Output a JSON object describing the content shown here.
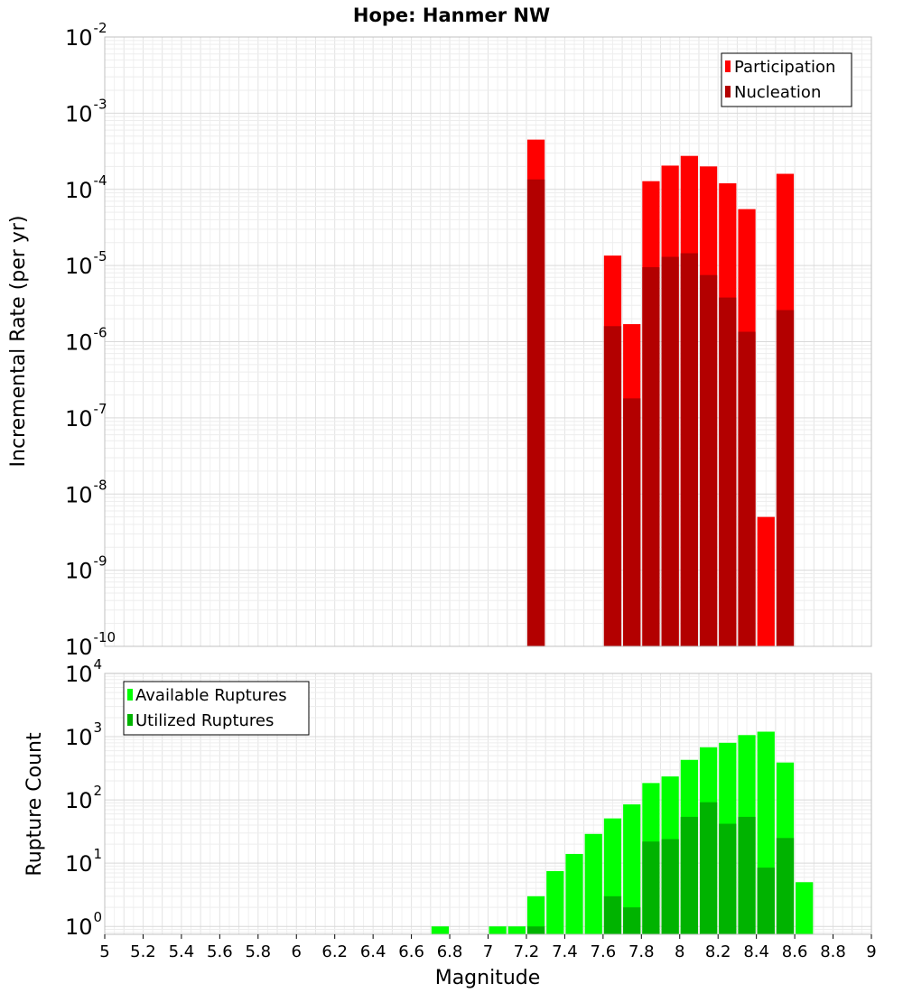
{
  "chart_data": [
    {
      "type": "bar",
      "title": "Hope: Hanmer NW",
      "xlabel": "Magnitude",
      "ylabel": "Incremental Rate (per yr)",
      "yscale": "log",
      "xlim": [
        5,
        9
      ],
      "ylim": [
        1e-10,
        0.01
      ],
      "legend_position": "top-right",
      "grid": true,
      "stacked_overlay": true,
      "bin_width": 0.1,
      "series": [
        {
          "name": "Participation",
          "color": "#ff0000",
          "x": [
            7.25,
            7.65,
            7.75,
            7.85,
            7.95,
            8.05,
            8.15,
            8.25,
            8.35,
            8.45,
            8.55
          ],
          "values": [
            0.00045,
            1.35e-05,
            1.7e-06,
            0.000128,
            0.000205,
            0.000275,
            0.0002,
            0.00012,
            5.5e-05,
            5e-09,
            0.00016
          ]
        },
        {
          "name": "Nucleation",
          "color": "#b30000",
          "x": [
            7.25,
            7.65,
            7.75,
            7.85,
            7.95,
            8.05,
            8.15,
            8.25,
            8.35,
            8.55
          ],
          "values": [
            0.000135,
            1.6e-06,
            1.8e-07,
            9.5e-06,
            1.3e-05,
            1.45e-05,
            7.5e-06,
            3.8e-06,
            1.35e-06,
            2.6e-06
          ]
        }
      ]
    },
    {
      "type": "bar",
      "xlabel": "Magnitude",
      "ylabel": "Rupture Count",
      "yscale": "log",
      "xlim": [
        5,
        9
      ],
      "ylim": [
        0.75,
        10000.0
      ],
      "legend_position": "top-left",
      "grid": true,
      "stacked_overlay": true,
      "bin_width": 0.1,
      "series": [
        {
          "name": "Available Ruptures",
          "color": "#00ff00",
          "x": [
            6.75,
            7.05,
            7.15,
            7.25,
            7.35,
            7.45,
            7.55,
            7.65,
            7.75,
            7.85,
            7.95,
            8.05,
            8.15,
            8.25,
            8.35,
            8.45,
            8.55,
            8.65
          ],
          "values": [
            1,
            1,
            1,
            3,
            7.5,
            14,
            29,
            51,
            85,
            185,
            235,
            430,
            680,
            800,
            1060,
            1200,
            390,
            5
          ]
        },
        {
          "name": "Utilized Ruptures",
          "color": "#00b300",
          "x": [
            7.25,
            7.65,
            7.75,
            7.85,
            7.95,
            8.05,
            8.15,
            8.25,
            8.35,
            8.45,
            8.55
          ],
          "values": [
            1,
            3,
            2,
            22,
            24,
            54,
            92,
            42,
            54,
            8.5,
            25
          ]
        }
      ]
    }
  ],
  "xticks": [
    "5",
    "5.2",
    "5.4",
    "5.6",
    "5.8",
    "6",
    "6.2",
    "6.4",
    "6.6",
    "6.8",
    "7",
    "7.2",
    "7.4",
    "7.6",
    "7.8",
    "8",
    "8.2",
    "8.4",
    "8.6",
    "8.8",
    "9"
  ],
  "top_yticks": [
    {
      "base": "10",
      "exp": "-10",
      "value": 1e-10
    },
    {
      "base": "10",
      "exp": "-9",
      "value": 1e-09
    },
    {
      "base": "10",
      "exp": "-8",
      "value": 1e-08
    },
    {
      "base": "10",
      "exp": "-7",
      "value": 1e-07
    },
    {
      "base": "10",
      "exp": "-6",
      "value": 1e-06
    },
    {
      "base": "10",
      "exp": "-5",
      "value": 1e-05
    },
    {
      "base": "10",
      "exp": "-4",
      "value": 0.0001
    },
    {
      "base": "10",
      "exp": "-3",
      "value": 0.001
    },
    {
      "base": "10",
      "exp": "-2",
      "value": 0.01
    }
  ],
  "bottom_yticks": [
    {
      "base": "10",
      "exp": "0",
      "value": 1
    },
    {
      "base": "10",
      "exp": "1",
      "value": 10
    },
    {
      "base": "10",
      "exp": "2",
      "value": 100
    },
    {
      "base": "10",
      "exp": "3",
      "value": 1000
    },
    {
      "base": "10",
      "exp": "4",
      "value": 10000
    }
  ]
}
